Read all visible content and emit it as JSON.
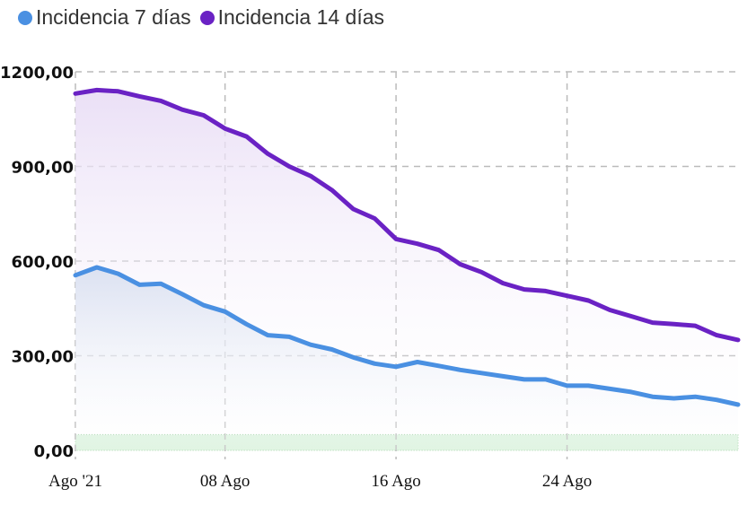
{
  "chart_data": {
    "type": "line",
    "title": "",
    "xlabel": "",
    "ylabel": "",
    "x": [
      "2021-08-01",
      "2021-08-02",
      "2021-08-03",
      "2021-08-04",
      "2021-08-05",
      "2021-08-06",
      "2021-08-07",
      "2021-08-08",
      "2021-08-09",
      "2021-08-10",
      "2021-08-11",
      "2021-08-12",
      "2021-08-13",
      "2021-08-14",
      "2021-08-15",
      "2021-08-16",
      "2021-08-17",
      "2021-08-18",
      "2021-08-19",
      "2021-08-20",
      "2021-08-21",
      "2021-08-22",
      "2021-08-23",
      "2021-08-24",
      "2021-08-25",
      "2021-08-26",
      "2021-08-27",
      "2021-08-28",
      "2021-08-29",
      "2021-08-30",
      "2021-08-31",
      "2021-09-01"
    ],
    "xticks": [
      {
        "date": "2021-08-01",
        "label": "Ago '21"
      },
      {
        "date": "2021-08-08",
        "label": "08 Ago"
      },
      {
        "date": "2021-08-16",
        "label": "16 Ago"
      },
      {
        "date": "2021-08-24",
        "label": "24 Ago"
      }
    ],
    "ylim": [
      0,
      1200
    ],
    "yticks": [
      {
        "value": 0,
        "label": "0,00"
      },
      {
        "value": 300,
        "label": "300,00"
      },
      {
        "value": 600,
        "label": "600,00"
      },
      {
        "value": 900,
        "label": "900,00"
      },
      {
        "value": 1200,
        "label": "1200,00"
      }
    ],
    "grid": true,
    "legend_position": "top-left",
    "band": {
      "from": 0,
      "to": 50,
      "color": "#d9f2dc"
    },
    "series": [
      {
        "name": "Incidencia 7 días",
        "color": "#4a90e2",
        "values": [
          555,
          580,
          560,
          525,
          528,
          495,
          460,
          440,
          400,
          365,
          360,
          335,
          320,
          295,
          275,
          265,
          280,
          268,
          255,
          245,
          235,
          225,
          225,
          205,
          205,
          195,
          185,
          170,
          165,
          170,
          160,
          145
        ]
      },
      {
        "name": "Incidencia 14 días",
        "color": "#6a22c4",
        "values": [
          1131,
          1142,
          1138,
          1122,
          1108,
          1080,
          1062,
          1020,
          995,
          940,
          900,
          870,
          825,
          765,
          735,
          670,
          655,
          635,
          590,
          565,
          530,
          510,
          505,
          490,
          475,
          445,
          425,
          405,
          400,
          395,
          365,
          350
        ]
      }
    ]
  }
}
